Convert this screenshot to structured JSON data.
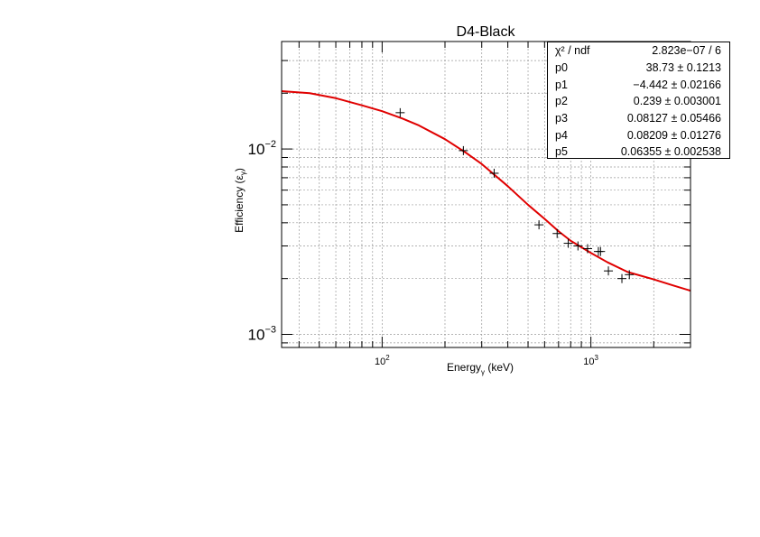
{
  "chart_data": {
    "type": "scatter",
    "title": "D4-Black",
    "xlabel": "Energy",
    "xlabel_sub": "γ",
    "xlabel_unit": " (keV)",
    "ylabel": "Efficiency (ε",
    "ylabel_sub": "γ",
    "ylabel_close": ")",
    "xscale": "log",
    "yscale": "log",
    "xlim": [
      33,
      3000
    ],
    "ylim": [
      0.00085,
      0.038
    ],
    "grid": true,
    "x_ticks": [
      {
        "value": 100,
        "mantissa": "10",
        "exp": "2"
      },
      {
        "value": 1000,
        "mantissa": "10",
        "exp": "3"
      }
    ],
    "y_ticks": [
      {
        "value": 0.001,
        "mantissa": "10",
        "exp": "−3"
      },
      {
        "value": 0.01,
        "mantissa": "10",
        "exp": "−2"
      }
    ],
    "series": [
      {
        "points": [
          {
            "x": 122,
            "y": 0.0157
          },
          {
            "x": 245,
            "y": 0.0098
          },
          {
            "x": 344,
            "y": 0.0074
          },
          {
            "x": 564,
            "y": 0.0039
          },
          {
            "x": 689,
            "y": 0.0035
          },
          {
            "x": 779,
            "y": 0.0031
          },
          {
            "x": 867,
            "y": 0.003
          },
          {
            "x": 964,
            "y": 0.0029
          },
          {
            "x": 1086,
            "y": 0.0028
          },
          {
            "x": 1112,
            "y": 0.0028
          },
          {
            "x": 1213,
            "y": 0.0022
          },
          {
            "x": 1408,
            "y": 0.002
          },
          {
            "x": 1528,
            "y": 0.0021
          }
        ],
        "marker": "cross",
        "color": "#000000"
      },
      {
        "fit": true,
        "color": "#e00000",
        "curve": [
          {
            "x": 33,
            "y": 0.0205
          },
          {
            "x": 45,
            "y": 0.02
          },
          {
            "x": 60,
            "y": 0.0188
          },
          {
            "x": 80,
            "y": 0.0172
          },
          {
            "x": 100,
            "y": 0.016
          },
          {
            "x": 125,
            "y": 0.0146
          },
          {
            "x": 150,
            "y": 0.0134
          },
          {
            "x": 200,
            "y": 0.0113
          },
          {
            "x": 250,
            "y": 0.0096
          },
          {
            "x": 300,
            "y": 0.0083
          },
          {
            "x": 400,
            "y": 0.0063
          },
          {
            "x": 500,
            "y": 0.005
          },
          {
            "x": 600,
            "y": 0.0042
          },
          {
            "x": 700,
            "y": 0.0036
          },
          {
            "x": 800,
            "y": 0.0032
          },
          {
            "x": 1000,
            "y": 0.00275
          },
          {
            "x": 1200,
            "y": 0.00245
          },
          {
            "x": 1500,
            "y": 0.00217
          },
          {
            "x": 2000,
            "y": 0.00198
          },
          {
            "x": 2500,
            "y": 0.00183
          },
          {
            "x": 3000,
            "y": 0.00172
          }
        ]
      }
    ],
    "stats": [
      {
        "label": "χ² / ndf",
        "value": "2.823e−07 / 6"
      },
      {
        "label": "p0",
        "value": "38.73 ± 0.1213"
      },
      {
        "label": "p1",
        "value": "−4.442 ± 0.02166"
      },
      {
        "label": "p2",
        "value": "0.239 ± 0.003001"
      },
      {
        "label": "p3",
        "value": "0.08127 ± 0.05466"
      },
      {
        "label": "p4",
        "value": "0.08209 ± 0.01276"
      },
      {
        "label": "p5",
        "value": "0.06355 ± 0.002538"
      }
    ]
  }
}
